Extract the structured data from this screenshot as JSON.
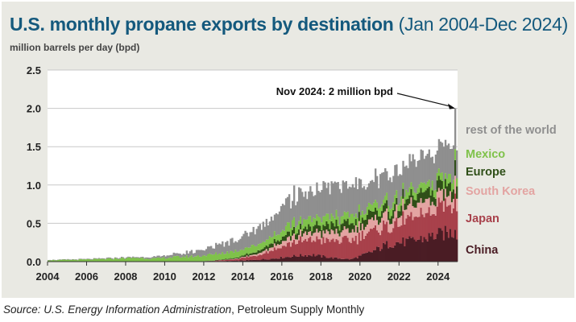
{
  "title_main": "U.S. monthly propane exports by destination",
  "title_sub": "(Jan 2004-Dec 2024)",
  "units_label": "million barrels per day (bpd)",
  "source_prefix": "Source:",
  "source_agency": "U.S. Energy Information Administration",
  "source_publication": ", Petroleum Supply Monthly",
  "annotation": "Nov 2024: 2 million bpd",
  "colors": {
    "panel_bg": "#e9e9e3",
    "plot_bg": "#ffffff",
    "grid": "#c8c8c8",
    "title": "#14597d"
  },
  "chart_data": {
    "type": "area",
    "stacked": true,
    "frequency": "monthly",
    "x_start": "2004-01",
    "x_end": "2024-12",
    "xticks": [
      "2004",
      "2006",
      "2008",
      "2010",
      "2012",
      "2014",
      "2016",
      "2018",
      "2020",
      "2022",
      "2024"
    ],
    "yticks": [
      "0.0",
      "0.5",
      "1.0",
      "1.5",
      "2.0",
      "2.5"
    ],
    "ylim": [
      0,
      2.5
    ],
    "ylabel": "million barrels per day (bpd)",
    "grid": true,
    "legend_placement": "right, labels aligned with series",
    "annotation": {
      "text": "Nov 2024: 2 million bpd",
      "x": "2024-11",
      "y": 2.0
    },
    "series_order": [
      "China",
      "Japan",
      "South Korea",
      "Europe",
      "Mexico",
      "rest of the world"
    ],
    "series": [
      {
        "name": "China",
        "color": "#4a1c24",
        "values_by_year_avg": {
          "2004": 0,
          "2005": 0,
          "2006": 0,
          "2007": 0,
          "2008": 0,
          "2009": 0,
          "2010": 0,
          "2011": 0,
          "2012": 0.005,
          "2013": 0.01,
          "2014": 0.02,
          "2015": 0.04,
          "2016": 0.07,
          "2017": 0.09,
          "2018": 0.05,
          "2019": 0.03,
          "2020": 0.12,
          "2021": 0.24,
          "2022": 0.26,
          "2023": 0.32,
          "2024": 0.38
        }
      },
      {
        "name": "Japan",
        "color": "#a8414b",
        "values_by_year_avg": {
          "2004": 0,
          "2005": 0,
          "2006": 0,
          "2007": 0,
          "2008": 0,
          "2009": 0,
          "2010": 0,
          "2011": 0,
          "2012": 0.005,
          "2013": 0.02,
          "2014": 0.05,
          "2015": 0.12,
          "2016": 0.18,
          "2017": 0.2,
          "2018": 0.22,
          "2019": 0.25,
          "2020": 0.26,
          "2021": 0.24,
          "2022": 0.28,
          "2023": 0.3,
          "2024": 0.38
        }
      },
      {
        "name": "South Korea",
        "color": "#e3a4a2",
        "values_by_year_avg": {
          "2004": 0,
          "2005": 0,
          "2006": 0,
          "2007": 0,
          "2008": 0,
          "2009": 0,
          "2010": 0,
          "2011": 0,
          "2012": 0,
          "2013": 0.005,
          "2014": 0.015,
          "2015": 0.04,
          "2016": 0.07,
          "2017": 0.09,
          "2018": 0.11,
          "2019": 0.12,
          "2020": 0.13,
          "2021": 0.14,
          "2022": 0.15,
          "2023": 0.15,
          "2024": 0.16
        }
      },
      {
        "name": "Europe",
        "color": "#2f4f18",
        "values_by_year_avg": {
          "2004": 0,
          "2005": 0,
          "2006": 0,
          "2007": 0,
          "2008": 0,
          "2009": 0,
          "2010": 0,
          "2011": 0,
          "2012": 0.005,
          "2013": 0.01,
          "2014": 0.03,
          "2015": 0.05,
          "2016": 0.07,
          "2017": 0.08,
          "2018": 0.09,
          "2019": 0.1,
          "2020": 0.1,
          "2021": 0.1,
          "2022": 0.11,
          "2023": 0.12,
          "2024": 0.15
        }
      },
      {
        "name": "Mexico",
        "color": "#7fc24a",
        "values_by_year_avg": {
          "2004": 0.02,
          "2005": 0.025,
          "2006": 0.03,
          "2007": 0.04,
          "2008": 0.05,
          "2009": 0.04,
          "2010": 0.06,
          "2011": 0.07,
          "2012": 0.08,
          "2013": 0.09,
          "2014": 0.09,
          "2015": 0.09,
          "2016": 0.1,
          "2017": 0.11,
          "2018": 0.11,
          "2019": 0.1,
          "2020": 0.1,
          "2021": 0.09,
          "2022": 0.1,
          "2023": 0.1,
          "2024": 0.1
        }
      },
      {
        "name": "rest of the world",
        "color": "#8f8f8f",
        "values_by_year_avg": {
          "2004": 0.005,
          "2005": 0.005,
          "2006": 0.008,
          "2007": 0.01,
          "2008": 0.01,
          "2009": 0.02,
          "2010": 0.04,
          "2011": 0.06,
          "2012": 0.1,
          "2013": 0.15,
          "2014": 0.2,
          "2015": 0.26,
          "2016": 0.34,
          "2017": 0.36,
          "2018": 0.4,
          "2019": 0.4,
          "2020": 0.34,
          "2021": 0.38,
          "2022": 0.36,
          "2023": 0.35,
          "2024": 0.38
        }
      }
    ]
  }
}
